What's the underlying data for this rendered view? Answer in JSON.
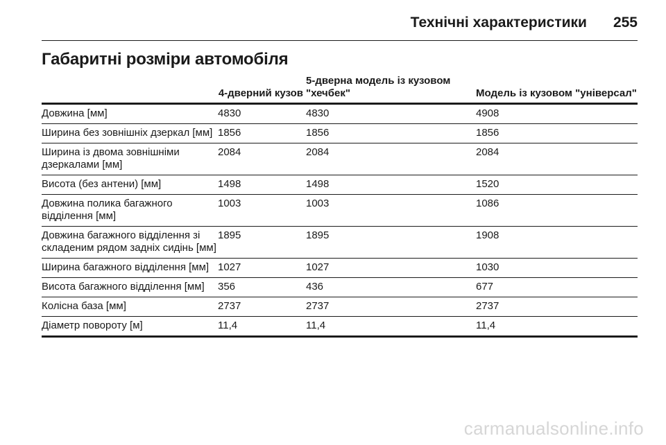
{
  "header": {
    "title": "Технічні характеристики",
    "page_number": "255"
  },
  "section_title": "Габаритні розміри автомобіля",
  "table": {
    "columns": [
      "",
      "4-дверний кузов",
      "5-дверна модель із кузовом \"хечбек\"",
      "Модель із кузовом \"універсал\""
    ],
    "rows": [
      {
        "label": "Довжина [мм]",
        "values": [
          "4830",
          "4830",
          "4908"
        ]
      },
      {
        "label": "Ширина без зовнішніх дзеркал [мм]",
        "values": [
          "1856",
          "1856",
          "1856"
        ]
      },
      {
        "label": "Ширина із двома зовнішніми дзеркалами [мм]",
        "values": [
          "2084",
          "2084",
          "2084"
        ]
      },
      {
        "label": "Висота (без антени) [мм]",
        "values": [
          "1498",
          "1498",
          "1520"
        ]
      },
      {
        "label": "Довжина полика багажного відділення [мм]",
        "values": [
          "1003",
          "1003",
          "1086"
        ]
      },
      {
        "label": "Довжина багажного відділення зі складеним рядом задніх сидінь [мм]",
        "values": [
          "1895",
          "1895",
          "1908"
        ]
      },
      {
        "label": "Ширина багажного відділення [мм]",
        "values": [
          "1027",
          "1027",
          "1030"
        ]
      },
      {
        "label": "Висота багажного відділення [мм]",
        "values": [
          "356",
          "436",
          "677"
        ]
      },
      {
        "label": "Колісна база [мм]",
        "values": [
          "2737",
          "2737",
          "2737"
        ]
      },
      {
        "label": "Діаметр повороту [м]",
        "values": [
          "11,4",
          "11,4",
          "11,4"
        ]
      }
    ]
  },
  "watermark": "carmanualsonline.info"
}
